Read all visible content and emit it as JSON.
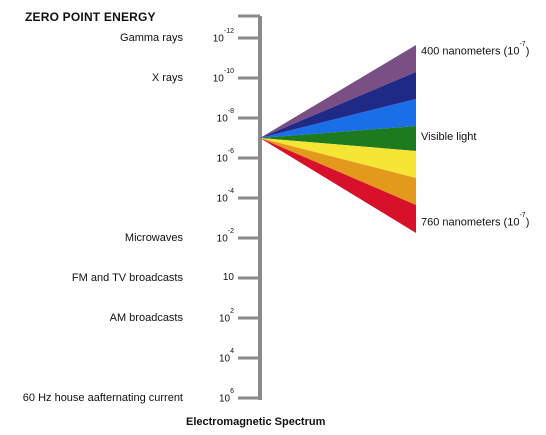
{
  "heading": "ZERO POINT ENERGY",
  "caption": "Electromagnetic Spectrum",
  "scale": [
    {
      "label": "Gamma rays",
      "base": "10",
      "exp": "-12"
    },
    {
      "label": "X rays",
      "base": "10",
      "exp": "-10"
    },
    {
      "label": "",
      "base": "10",
      "exp": "-8"
    },
    {
      "label": "",
      "base": "10",
      "exp": "-6"
    },
    {
      "label": "",
      "base": "10",
      "exp": "-4"
    },
    {
      "label": "Microwaves",
      "base": "10",
      "exp": "-2"
    },
    {
      "label": "FM and TV broadcasts",
      "base": "10",
      "exp": ""
    },
    {
      "label": "AM broadcasts",
      "base": "10",
      "exp": "2"
    },
    {
      "label": "",
      "base": "10",
      "exp": "4"
    },
    {
      "label": "60 Hz house aafternating current",
      "base": "10",
      "exp": "6"
    }
  ],
  "spectrum_labels": {
    "top": {
      "text": "400 nanometers (10",
      "exp": "-7",
      "close": ")"
    },
    "middle": "Visible light",
    "bottom": {
      "text": "760 nanometers (10",
      "exp": "-7",
      "close": ")"
    }
  },
  "colors": {
    "axis": "#8a8a8a",
    "bands": [
      "#7a4f86",
      "#1f2a86",
      "#1a6ee8",
      "#1e7a1e",
      "#f5e534",
      "#e39a1c",
      "#d8112a"
    ]
  }
}
